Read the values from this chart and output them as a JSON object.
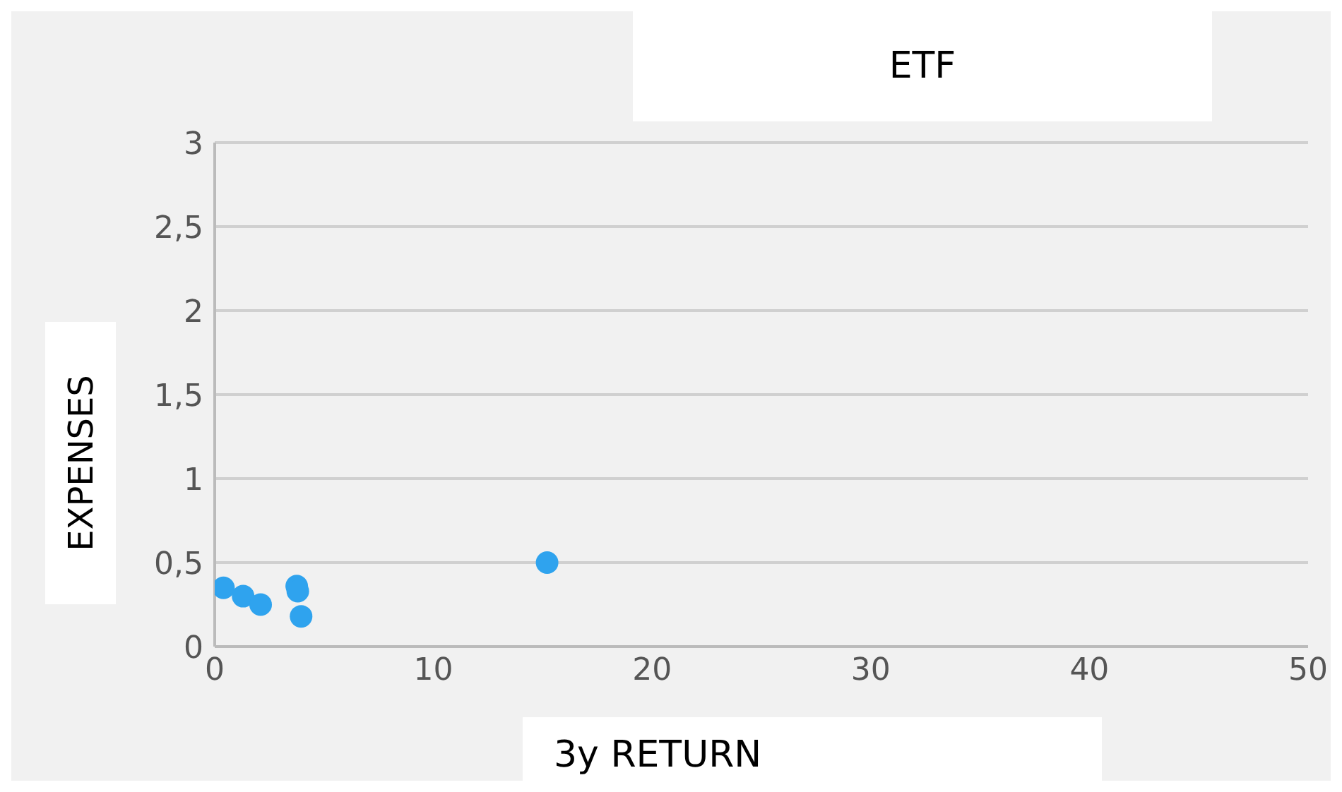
{
  "chart_data": {
    "type": "scatter",
    "title": "ETF",
    "xlabel": "3y RETURN",
    "ylabel": "EXPENSES",
    "x": [
      0.4,
      1.3,
      2.1,
      3.75,
      3.8,
      3.95,
      15.2
    ],
    "values": [
      0.35,
      0.3,
      0.25,
      0.36,
      0.33,
      0.18,
      0.5
    ],
    "color": "#2fa3ee",
    "marker": "circle",
    "xlim": [
      0,
      50
    ],
    "xticks": [
      0,
      10,
      20,
      30,
      40,
      50
    ],
    "ylim": [
      0,
      3
    ],
    "yticks": [
      0,
      {
        "value": 0.5,
        "label": "0,5"
      },
      1,
      {
        "value": 1.5,
        "label": "1,5"
      },
      2,
      {
        "value": 2.5,
        "label": "2,5"
      },
      3
    ],
    "grid": "y"
  }
}
